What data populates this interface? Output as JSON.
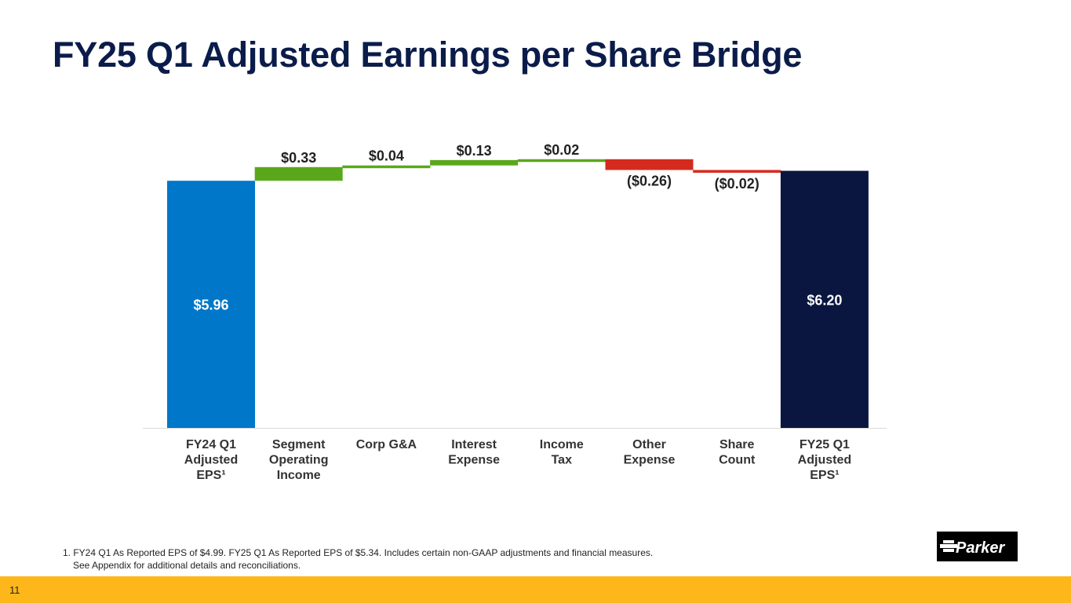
{
  "slide": {
    "title": "FY25 Q1 Adjusted Earnings per Share Bridge",
    "footnote_line1": "1. FY24 Q1 As Reported EPS of $4.99. FY25 Q1 As Reported EPS of $5.34. Includes certain non-GAAP adjustments and financial measures.",
    "footnote_line2": "See Appendix for additional details and reconciliations.",
    "page_number": "11",
    "logo_text": "Parker"
  },
  "colors": {
    "title": "#0b1c4a",
    "start": "#0077c8",
    "increase": "#5ba71b",
    "decrease": "#d52b1e",
    "end": "#0b1640",
    "bottom_bar": "#fdb71a"
  },
  "chart_data": {
    "type": "waterfall",
    "ylim": [
      0,
      6.4
    ],
    "categories": [
      [
        "FY24 Q1",
        "Adjusted",
        "EPS¹"
      ],
      [
        "Segment",
        "Operating",
        "Income"
      ],
      [
        "Corp G&A"
      ],
      [
        "Interest",
        "Expense"
      ],
      [
        "Income",
        "Tax"
      ],
      [
        "Other",
        "Expense"
      ],
      [
        "Share",
        "Count"
      ],
      [
        "FY25 Q1",
        "Adjusted",
        "EPS¹"
      ]
    ],
    "values": [
      5.96,
      0.33,
      0.04,
      0.13,
      0.02,
      -0.26,
      -0.02,
      6.2
    ],
    "kinds": [
      "total",
      "delta",
      "delta",
      "delta",
      "delta",
      "delta",
      "delta",
      "total"
    ],
    "labels": [
      "$5.96",
      "$0.33",
      "$0.04",
      "$0.13",
      "$0.02",
      "($0.26)",
      "($0.02)",
      "$6.20"
    ]
  }
}
